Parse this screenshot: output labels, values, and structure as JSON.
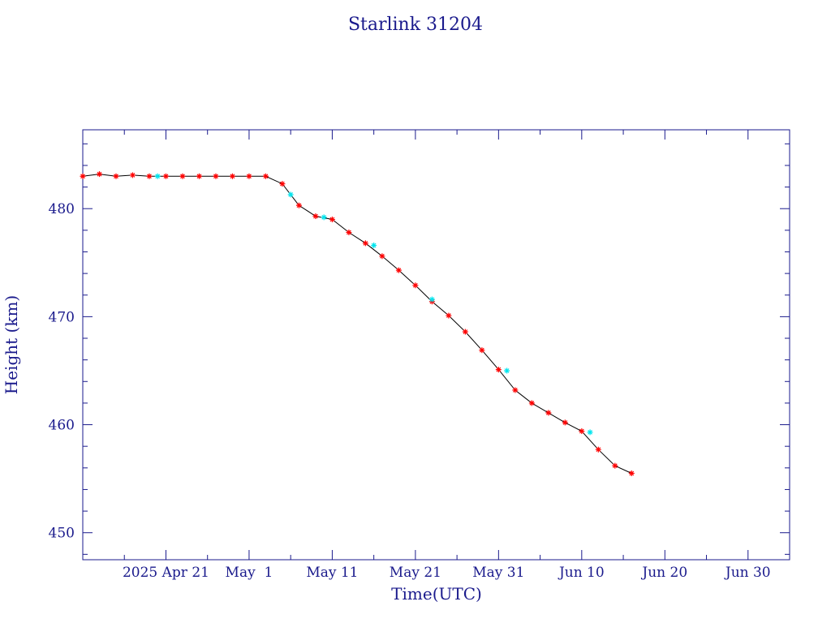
{
  "chart_data": {
    "type": "scatter",
    "title": "Starlink 31204",
    "xlabel": "Time(UTC)",
    "ylabel": "Height (km)",
    "x_tick_labels": [
      "2025 Apr 21",
      "May  1",
      "May 11",
      "May 21",
      "May 31",
      "Jun 10",
      "Jun 20",
      "Jun 30"
    ],
    "x_tick_dates": [
      "2025-04-21",
      "2025-05-01",
      "2025-05-11",
      "2025-05-21",
      "2025-05-31",
      "2025-06-10",
      "2025-06-20",
      "2025-06-30"
    ],
    "xlim": [
      "2025-04-11",
      "2025-07-05"
    ],
    "y_tick_labels": [
      "480",
      "470",
      "460",
      "450"
    ],
    "y_tick_values": [
      480,
      470,
      460,
      450
    ],
    "ylim": [
      447.5,
      487.3
    ],
    "grid": false,
    "colors": {
      "axes": "#1a1a8c",
      "text": "#1a1a8c",
      "trend_line": "#000000",
      "primary_markers": "#ff0000",
      "secondary_markers": "#00e5ee"
    },
    "series": [
      {
        "marker": "asterisk",
        "color": "#ff0000",
        "x": [
          "2025-04-11",
          "2025-04-13",
          "2025-04-15",
          "2025-04-17",
          "2025-04-19",
          "2025-04-21",
          "2025-04-23",
          "2025-04-25",
          "2025-04-27",
          "2025-04-29",
          "2025-05-01",
          "2025-05-03",
          "2025-05-05",
          "2025-05-07",
          "2025-05-09",
          "2025-05-11",
          "2025-05-13",
          "2025-05-15",
          "2025-05-17",
          "2025-05-19",
          "2025-05-21",
          "2025-05-23",
          "2025-05-25",
          "2025-05-27",
          "2025-05-29",
          "2025-05-31",
          "2025-06-02",
          "2025-06-04",
          "2025-06-06",
          "2025-06-08",
          "2025-06-10",
          "2025-06-12",
          "2025-06-14",
          "2025-06-16"
        ],
        "y": [
          483.0,
          483.2,
          483.0,
          483.1,
          483.0,
          483.0,
          483.0,
          483.0,
          483.0,
          483.0,
          483.0,
          483.0,
          482.3,
          480.3,
          479.3,
          479.0,
          477.8,
          476.8,
          475.6,
          474.3,
          472.9,
          471.4,
          470.1,
          468.6,
          466.9,
          465.1,
          463.2,
          462.0,
          461.1,
          460.2,
          459.4,
          457.7,
          456.2,
          455.5
        ]
      },
      {
        "marker": "asterisk",
        "color": "#00e5ee",
        "x": [
          "2025-04-20",
          "2025-05-06",
          "2025-05-10",
          "2025-05-16",
          "2025-05-23",
          "2025-06-01",
          "2025-06-11"
        ],
        "y": [
          483.0,
          481.3,
          479.2,
          476.6,
          471.6,
          465.0,
          459.3
        ]
      }
    ]
  }
}
